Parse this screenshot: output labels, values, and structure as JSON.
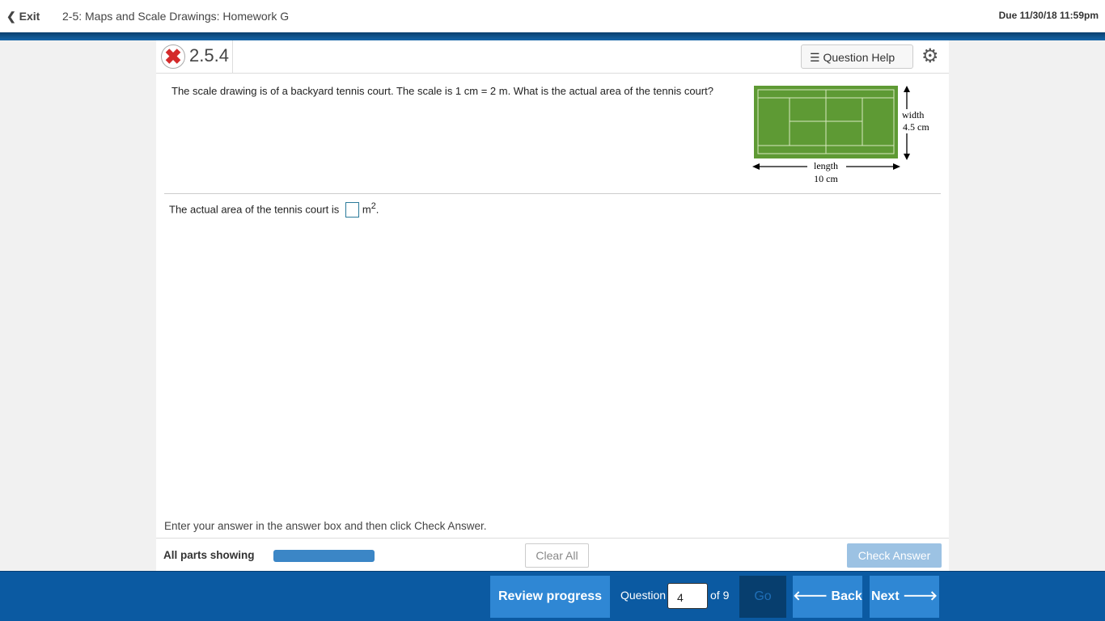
{
  "header": {
    "exit_label": "Exit",
    "title": "2-5: Maps and Scale Drawings: Homework G",
    "due": "Due 11/30/18 11:59pm"
  },
  "question": {
    "status_icon": "incorrect-x-icon",
    "number": "2.5.4",
    "help_label": "Question Help",
    "text": "The scale drawing is of a backyard tennis court. The scale is 1 cm = 2 m. What is the actual area of the tennis court?",
    "answer_prefix": "The actual area of the tennis court is",
    "answer_value": "",
    "answer_unit": "m",
    "answer_exp": "2",
    "answer_suffix": ".",
    "figure": {
      "width_label": "width",
      "width_value": "4.5 cm",
      "length_label": "length",
      "length_value": "10 cm",
      "court_color": "#5e9a34"
    }
  },
  "footer": {
    "instruction": "Enter your answer in the answer box and then click Check Answer.",
    "parts_label": "All parts showing",
    "clear_label": "Clear All",
    "check_label": "Check Answer"
  },
  "nav": {
    "review_label": "Review progress",
    "question_label": "Question",
    "question_value": "4",
    "of_label": "of 9",
    "go_label": "Go",
    "back_label": "Back",
    "next_label": "Next"
  }
}
